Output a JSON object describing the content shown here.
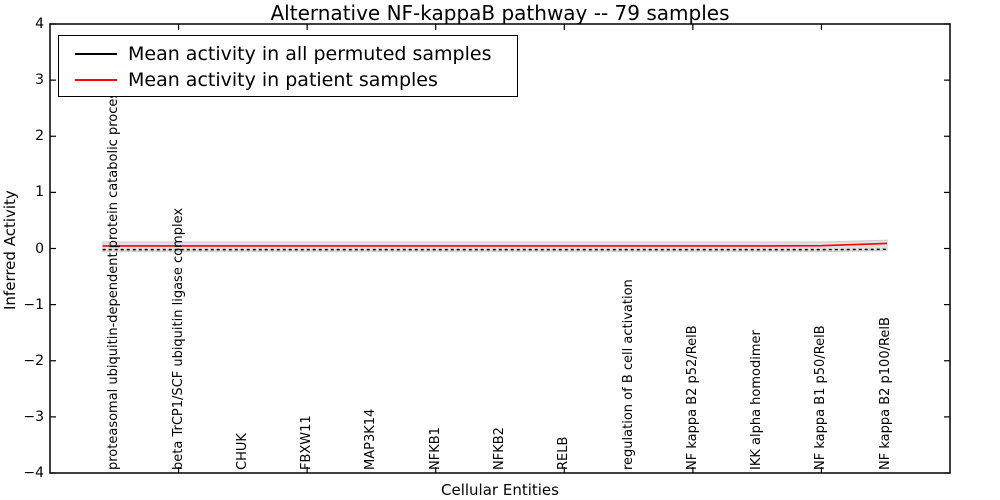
{
  "chart_data": {
    "type": "line",
    "title": "Alternative NF-kappaB pathway -- 79 samples",
    "xlabel": "Cellular Entities",
    "ylabel": "Inferred Activity",
    "xlim": [
      0,
      7
    ],
    "ylim": [
      -4,
      4
    ],
    "yticks": [
      4,
      3,
      2,
      1,
      0,
      -1,
      -2,
      -3,
      -4
    ],
    "ytick_labels": [
      "4",
      "3",
      "2",
      "1",
      "0",
      "−1",
      "−2",
      "−3",
      "−4"
    ],
    "xticks": [
      1,
      2,
      3,
      4,
      5,
      6
    ],
    "grid": false,
    "legend_position": "upper left",
    "categories": [
      "proteasomal ubiquitin-dependent protein catabolic process",
      "beta TrCP1/SCF ubiquitin ligase complex",
      "CHUK",
      "FBXW11",
      "MAP3K14",
      "NFKB1",
      "NFKB2",
      "RELB",
      "regulation of B cell activation",
      "NF kappa B2 p52/RelB",
      "IKK alpha homodimer",
      "NF kappa B1 p50/RelB",
      "NF kappa B2 p100/RelB"
    ],
    "series": [
      {
        "name": "Mean activity in all permuted samples",
        "color": "#000000",
        "line_style": "dashed",
        "values": [
          -0.02,
          -0.02,
          -0.02,
          -0.02,
          -0.02,
          -0.02,
          -0.02,
          -0.02,
          -0.02,
          -0.02,
          -0.02,
          -0.02,
          -0.015
        ]
      },
      {
        "name": "Mean activity in patient samples",
        "color": "#ff0000",
        "line_style": "solid",
        "values": [
          0.045,
          0.045,
          0.045,
          0.045,
          0.045,
          0.045,
          0.045,
          0.045,
          0.045,
          0.045,
          0.045,
          0.05,
          0.09
        ]
      }
    ],
    "band": {
      "color": "#e1e1e1",
      "edge_color": "#cccccc",
      "upper": [
        0.115,
        0.115,
        0.115,
        0.115,
        0.115,
        0.115,
        0.115,
        0.115,
        0.115,
        0.115,
        0.115,
        0.115,
        0.15
      ],
      "lower": [
        -0.055,
        -0.055,
        -0.055,
        -0.055,
        -0.055,
        -0.055,
        -0.055,
        -0.055,
        -0.055,
        -0.055,
        -0.055,
        -0.055,
        -0.04
      ]
    }
  }
}
